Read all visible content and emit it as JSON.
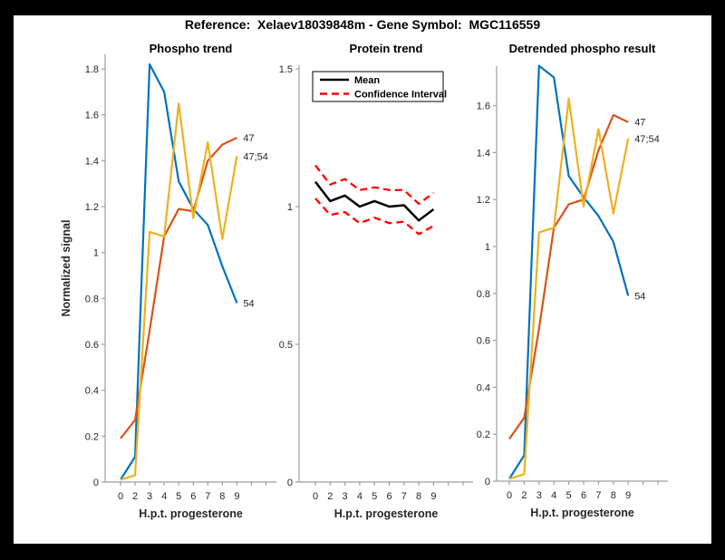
{
  "window": {
    "title": "Reference:  Xelaev18039848m - Gene Symbol:  MGC116559"
  },
  "colors": {
    "blue": "#0072BD",
    "orange": "#D95319",
    "yellow": "#EDB120",
    "red": "#FF0000",
    "black": "#000000",
    "axis": "#9e9e9e",
    "label": "#262626"
  },
  "chart_data": [
    {
      "type": "line",
      "title": "Phospho trend",
      "xlabel": "H.p.t. progesterone",
      "ylabel": "Normalized signal",
      "x_tick_labels": [
        "0",
        "2",
        "3",
        "4",
        "5",
        "6",
        "7",
        "8",
        "9"
      ],
      "y_ticks": [
        {
          "v": 0,
          "label": "0"
        },
        {
          "v": 0.2,
          "label": "0.2"
        },
        {
          "v": 0.4,
          "label": "0.4"
        },
        {
          "v": 0.6,
          "label": "0.6"
        },
        {
          "v": 0.8,
          "label": "0.8"
        },
        {
          "v": 1,
          "label": "1"
        },
        {
          "v": 1.2,
          "label": "1.2"
        },
        {
          "v": 1.4,
          "label": "1.4"
        },
        {
          "v": 1.6,
          "label": "1.6"
        },
        {
          "v": 1.8,
          "label": "1.8"
        }
      ],
      "ylim": [
        0,
        1.87
      ],
      "grid": false,
      "series": [
        {
          "name": "54",
          "color_key": "blue",
          "dash": null,
          "values": [
            0.01,
            0.11,
            1.82,
            1.7,
            1.31,
            1.19,
            1.12,
            0.94,
            0.78
          ],
          "end_label": "54"
        },
        {
          "name": "47",
          "color_key": "orange",
          "dash": null,
          "values": [
            0.19,
            0.27,
            0.66,
            1.07,
            1.19,
            1.18,
            1.4,
            1.47,
            1.5
          ],
          "end_label": "47"
        },
        {
          "name": "47;54",
          "color_key": "yellow",
          "dash": null,
          "values": [
            0.01,
            0.03,
            1.09,
            1.07,
            1.65,
            1.15,
            1.48,
            1.06,
            1.42
          ],
          "end_label": "47;54"
        }
      ]
    },
    {
      "type": "line",
      "title": "Protein trend",
      "xlabel": "H.p.t. progesterone",
      "ylabel": "",
      "x_tick_labels": [
        "0",
        "2",
        "3",
        "4",
        "5",
        "6",
        "7",
        "8",
        "9"
      ],
      "y_ticks": [
        {
          "v": 0,
          "label": "0"
        },
        {
          "v": 0.5,
          "label": "0.5"
        },
        {
          "v": 1,
          "label": "1"
        },
        {
          "v": 1.5,
          "label": "1.5"
        }
      ],
      "ylim": [
        0,
        1.51
      ],
      "grid": false,
      "legend": {
        "position": "top-left",
        "entries": [
          {
            "label": "Mean",
            "color_key": "black",
            "dash": null
          },
          {
            "label": "Confidence Interval",
            "color_key": "red",
            "dash": "8 5"
          }
        ]
      },
      "series": [
        {
          "name": "Mean",
          "color_key": "black",
          "dash": null,
          "width": 2.5,
          "values": [
            1.09,
            1.02,
            1.04,
            1.0,
            1.02,
            1.0,
            1.005,
            0.95,
            0.99
          ],
          "end_label": null
        },
        {
          "name": "CI upper",
          "color_key": "red",
          "dash": "8 5",
          "width": 2.3,
          "values": [
            1.15,
            1.08,
            1.1,
            1.06,
            1.07,
            1.06,
            1.06,
            1.01,
            1.05
          ],
          "end_label": null
        },
        {
          "name": "CI lower",
          "color_key": "red",
          "dash": "8 5",
          "width": 2.3,
          "values": [
            1.03,
            0.97,
            0.98,
            0.94,
            0.96,
            0.94,
            0.945,
            0.9,
            0.93
          ],
          "end_label": null
        }
      ]
    },
    {
      "type": "line",
      "title": "Detrended phospho result",
      "xlabel": "H.p.t. progesterone",
      "ylabel": "",
      "x_tick_labels": [
        "0",
        "2",
        "3",
        "4",
        "5",
        "6",
        "7",
        "8",
        "9"
      ],
      "y_ticks": [
        {
          "v": 0,
          "label": "0"
        },
        {
          "v": 0.2,
          "label": "0.2"
        },
        {
          "v": 0.4,
          "label": "0.4"
        },
        {
          "v": 0.6,
          "label": "0.6"
        },
        {
          "v": 0.8,
          "label": "0.8"
        },
        {
          "v": 1,
          "label": "1"
        },
        {
          "v": 1.2,
          "label": "1.2"
        },
        {
          "v": 1.4,
          "label": "1.4"
        },
        {
          "v": 1.6,
          "label": "1.6"
        }
      ],
      "ylim": [
        0,
        1.78
      ],
      "grid": false,
      "series": [
        {
          "name": "54",
          "color_key": "blue",
          "dash": null,
          "values": [
            0.01,
            0.11,
            1.77,
            1.72,
            1.3,
            1.21,
            1.13,
            1.02,
            0.79
          ],
          "end_label": "54"
        },
        {
          "name": "47",
          "color_key": "orange",
          "dash": null,
          "values": [
            0.18,
            0.27,
            0.65,
            1.08,
            1.18,
            1.2,
            1.41,
            1.56,
            1.53
          ],
          "end_label": "47"
        },
        {
          "name": "47;54",
          "color_key": "yellow",
          "dash": null,
          "values": [
            0.01,
            0.03,
            1.06,
            1.08,
            1.63,
            1.17,
            1.5,
            1.14,
            1.46
          ],
          "end_label": "47;54"
        }
      ]
    }
  ]
}
